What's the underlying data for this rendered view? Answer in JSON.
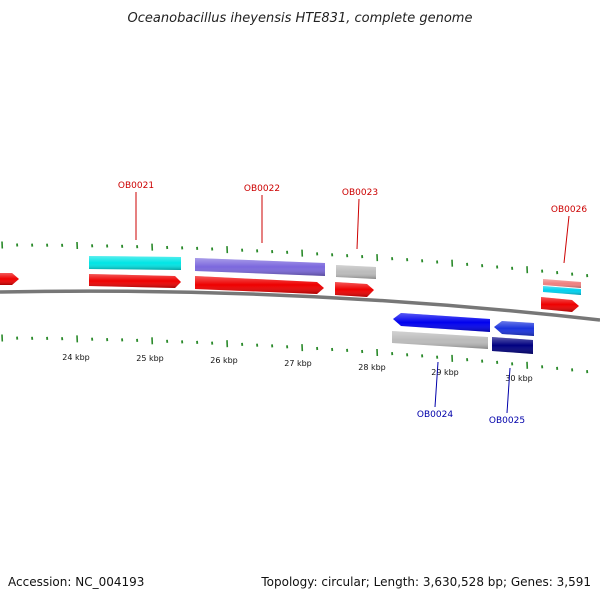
{
  "title": "Oceanobacillus iheyensis HTE831, complete genome",
  "footer": {
    "accession": "Accession: NC_004193",
    "summary": "Topology: circular; Length: 3,630,528 bp; Genes: 3,591"
  },
  "colors": {
    "backbone": "#777777",
    "ticks": "#2a8a2a",
    "label_forward": "#cc0000",
    "label_reverse": "#0000aa"
  },
  "scale_labels": [
    "24 kbp",
    "25 kbp",
    "26 kbp",
    "27 kbp",
    "28 kbp",
    "29 kbp",
    "30 kbp"
  ],
  "gene_labels": [
    {
      "id": "OB0021",
      "strand": "forward"
    },
    {
      "id": "OB0022",
      "strand": "forward"
    },
    {
      "id": "OB0023",
      "strand": "forward"
    },
    {
      "id": "OB0026",
      "strand": "forward"
    },
    {
      "id": "OB0024",
      "strand": "reverse"
    },
    {
      "id": "OB0025",
      "strand": "reverse"
    }
  ],
  "features": [
    {
      "name": "feature-cds-left-edge",
      "color": "#ee0000"
    },
    {
      "name": "feature-ob0021-gene",
      "color": "#00e5e5"
    },
    {
      "name": "feature-ob0021-cds",
      "color": "#ee0000"
    },
    {
      "name": "feature-ob0022-gene",
      "color": "#7b68dd"
    },
    {
      "name": "feature-ob0022-cds",
      "color": "#ee0000"
    },
    {
      "name": "feature-ob0023-gene",
      "color": "#bbbbbb"
    },
    {
      "name": "feature-ob0023-cds",
      "color": "#ee0000"
    },
    {
      "name": "feature-ob0026-rrna",
      "color": "#f08080"
    },
    {
      "name": "feature-ob0026-gene",
      "color": "#00d0ee"
    },
    {
      "name": "feature-ob0026-cds",
      "color": "#ee0000"
    },
    {
      "name": "feature-ob0024-cds",
      "color": "#0000ee"
    },
    {
      "name": "feature-ob0024-gene",
      "color": "#bbbbbb"
    },
    {
      "name": "feature-ob0025-cds",
      "color": "#1a33dd"
    },
    {
      "name": "feature-ob0025-gene",
      "color": "#000080"
    }
  ]
}
